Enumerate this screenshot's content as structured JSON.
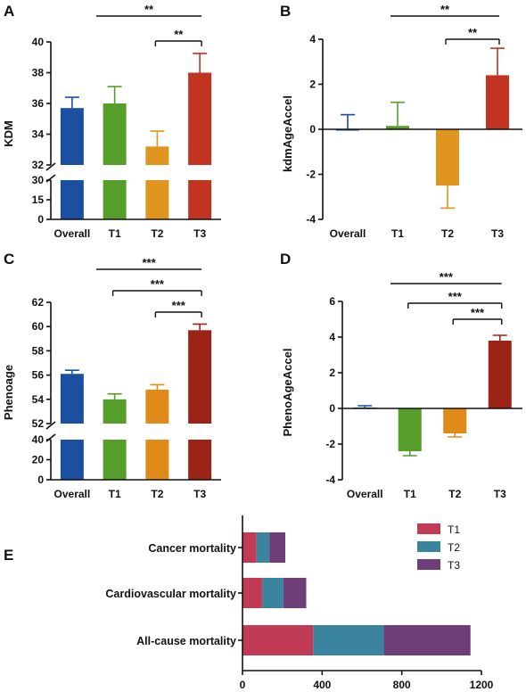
{
  "panels": {
    "A": {
      "letter": "A",
      "chart_data": {
        "type": "bar",
        "categories": [
          "Overall",
          "T1",
          "T2",
          "T3"
        ],
        "values": [
          35.7,
          36.0,
          33.2,
          38.0
        ],
        "errors": [
          0.7,
          1.1,
          1.0,
          1.25
        ],
        "colors": [
          "#1b4fa0",
          "#559e2a",
          "#e0951e",
          "#c23320"
        ],
        "ylabel": "KDM",
        "axis_break": true,
        "ylim_lower": [
          0,
          30
        ],
        "ylim_upper": [
          32,
          40
        ],
        "yticks_lower": [
          "0",
          "15",
          "30"
        ],
        "yticks_upper": [
          "32",
          "34",
          "36",
          "38",
          "40"
        ],
        "significance": [
          {
            "from": "T1",
            "to": "T3",
            "label": "**"
          },
          {
            "from": "T2",
            "to": "T3",
            "label": "**"
          }
        ]
      }
    },
    "B": {
      "letter": "B",
      "chart_data": {
        "type": "bar",
        "categories": [
          "Overall",
          "T1",
          "T2",
          "T3"
        ],
        "values": [
          0.0,
          0.15,
          -2.5,
          2.4
        ],
        "errors": [
          0.65,
          1.05,
          1.0,
          1.2
        ],
        "colors": [
          "#1b4fa0",
          "#559e2a",
          "#e0951e",
          "#c23320"
        ],
        "ylabel": "kdmAgeAccel",
        "ylim": [
          -4,
          4
        ],
        "yticks": [
          "-4",
          "-2",
          "0",
          "2",
          "4"
        ],
        "significance": [
          {
            "from": "T1",
            "to": "T3",
            "label": "**"
          },
          {
            "from": "T2",
            "to": "T3",
            "label": "**"
          }
        ]
      }
    },
    "C": {
      "letter": "C",
      "chart_data": {
        "type": "bar",
        "categories": [
          "Overall",
          "T1",
          "T2",
          "T3"
        ],
        "values": [
          56.1,
          54.0,
          54.8,
          59.7
        ],
        "errors": [
          0.3,
          0.45,
          0.4,
          0.5
        ],
        "colors": [
          "#1b4fa0",
          "#559e2a",
          "#e08a1a",
          "#9c2416"
        ],
        "ylabel": "Phenoage",
        "axis_break": true,
        "ylim_lower": [
          0,
          40
        ],
        "ylim_upper": [
          52,
          62
        ],
        "yticks_lower": [
          "0",
          "20",
          "40"
        ],
        "yticks_upper": [
          "52",
          "54",
          "56",
          "58",
          "60",
          "62"
        ],
        "significance": [
          {
            "from": "T1",
            "to": "T3",
            "label": "***"
          },
          {
            "from": "T1",
            "to": "T3",
            "label": "***"
          },
          {
            "from": "T2",
            "to": "T3",
            "label": "***"
          }
        ]
      }
    },
    "D": {
      "letter": "D",
      "chart_data": {
        "type": "bar",
        "categories": [
          "Overall",
          "T1",
          "T2",
          "T3"
        ],
        "values": [
          0.05,
          -2.4,
          -1.4,
          3.8
        ],
        "errors": [
          0.1,
          0.25,
          0.2,
          0.3
        ],
        "colors": [
          "#1b4fa0",
          "#559e2a",
          "#e08a1a",
          "#9c2416"
        ],
        "ylabel": "PhenoAgeAccel",
        "ylim": [
          -4,
          6
        ],
        "yticks": [
          "-4",
          "-2",
          "0",
          "2",
          "4",
          "6"
        ],
        "significance": [
          {
            "from": "T1",
            "to": "T3",
            "label": "***"
          },
          {
            "from": "T1",
            "to": "T3",
            "label": "***"
          },
          {
            "from": "T2",
            "to": "T3",
            "label": "***"
          }
        ]
      }
    },
    "E": {
      "letter": "E",
      "chart_data": {
        "type": "bar",
        "orientation": "horizontal",
        "stacked": true,
        "categories": [
          "Cancer mortality",
          "Cardiovascular mortality",
          "All-cause mortality"
        ],
        "series": [
          {
            "name": "T1",
            "color": "#c23b55",
            "values": [
              70,
              100,
              355
            ]
          },
          {
            "name": "T2",
            "color": "#3a84a0",
            "values": [
              65,
              105,
              355
            ]
          },
          {
            "name": "T3",
            "color": "#6e3e79",
            "values": [
              80,
              115,
              435
            ]
          }
        ],
        "xlim": [
          0,
          1200
        ],
        "xticks": [
          "0",
          "400",
          "800",
          "1200"
        ],
        "legend_position": "top-right"
      }
    }
  }
}
